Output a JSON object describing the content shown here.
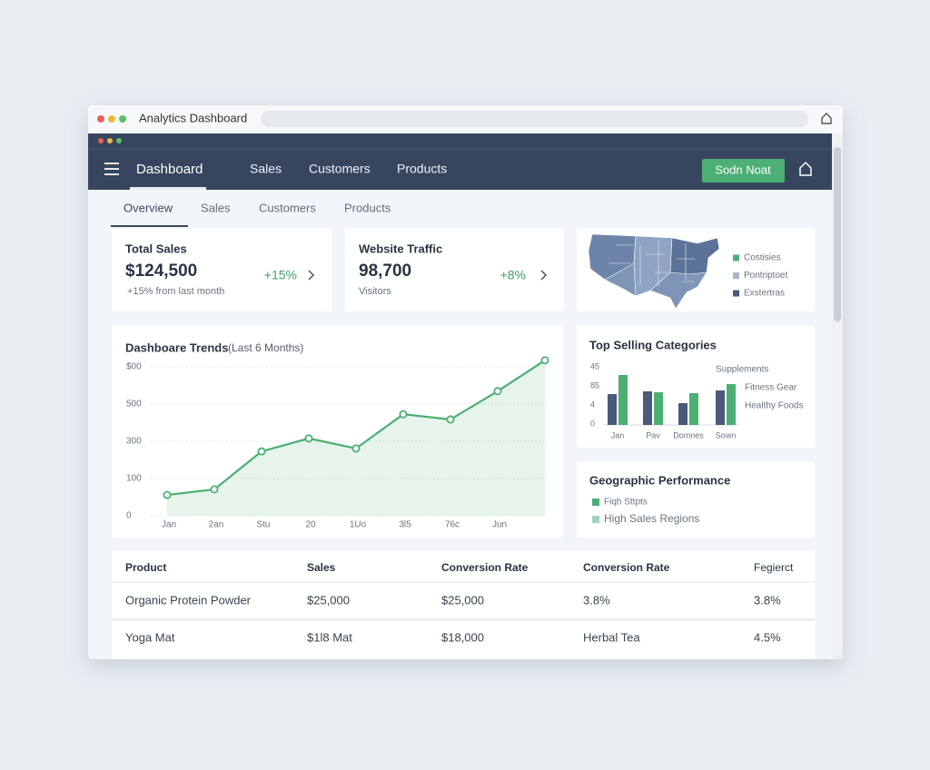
{
  "browser": {
    "title": "Analytics Dashboard"
  },
  "navbar": {
    "brand": "Dashboard",
    "links": [
      "Sales",
      "Customers",
      "Products"
    ],
    "button": "Sodn Noat"
  },
  "tabs": [
    "Overview",
    "Sales",
    "Customers",
    "Products"
  ],
  "kpis": [
    {
      "title": "Total Sales",
      "value": "$124,500",
      "change": "+15%",
      "note": "+15% from last month"
    },
    {
      "title": "Website Traffic",
      "value": "98,700",
      "change": "+8%",
      "note": "Visitors"
    }
  ],
  "map_legend": [
    {
      "label": "Costisies",
      "color": "#4caf73"
    },
    {
      "label": "Pontriptoet",
      "color": "#a9b6c8"
    },
    {
      "label": "Exstertras",
      "color": "#4a5a78"
    }
  ],
  "trends": {
    "type": "line",
    "title": "Dashboare Trends",
    "subtitle": "(Last 6 Months)",
    "y_labels": [
      "$00",
      "500",
      "300",
      "100",
      "0"
    ],
    "categories": [
      "Jan",
      "2an",
      "Stu",
      "20",
      "1Uo",
      "3l5",
      "76c",
      "Jun",
      null
    ],
    "values": [
      56,
      71,
      173,
      208,
      181,
      273,
      259,
      335,
      418
    ],
    "ylim": [
      0,
      420
    ],
    "color": "#4caf73"
  },
  "top_selling": {
    "type": "bar",
    "title": "Top Selling Categories",
    "y_labels": [
      "45",
      "85",
      "4",
      "0"
    ],
    "categories": [
      "Jan",
      "Pav",
      "Domnes",
      "Sown"
    ],
    "series": [
      {
        "color": "#4a5a78",
        "values": [
          34,
          37,
          24,
          38
        ]
      },
      {
        "color": "#4caf73",
        "values": [
          55,
          36,
          35,
          45
        ]
      }
    ],
    "ylim": [
      0,
      64
    ],
    "labels": [
      "Supplements",
      "Fitness Gear",
      "Healthy Foods"
    ]
  },
  "geo": {
    "title": "Geographic Performance",
    "legend": [
      {
        "label": "Fiqh Sttpts",
        "color": "#4caf73"
      },
      {
        "label": "High Sales Regions",
        "color": "#9fd5b3"
      }
    ]
  },
  "table": {
    "headers": [
      "Product",
      "Sales",
      "Conversion Rate",
      "Conversion Rate",
      "Fegierct"
    ],
    "rows": [
      [
        "Organic Protein Powder",
        "$25,000",
        "$25,000",
        "3.8%",
        "3.8%"
      ],
      [
        "Yoga Mat",
        "$1l8 Mat",
        "$18,000",
        "Herbal Tea",
        "4.5%"
      ]
    ]
  }
}
